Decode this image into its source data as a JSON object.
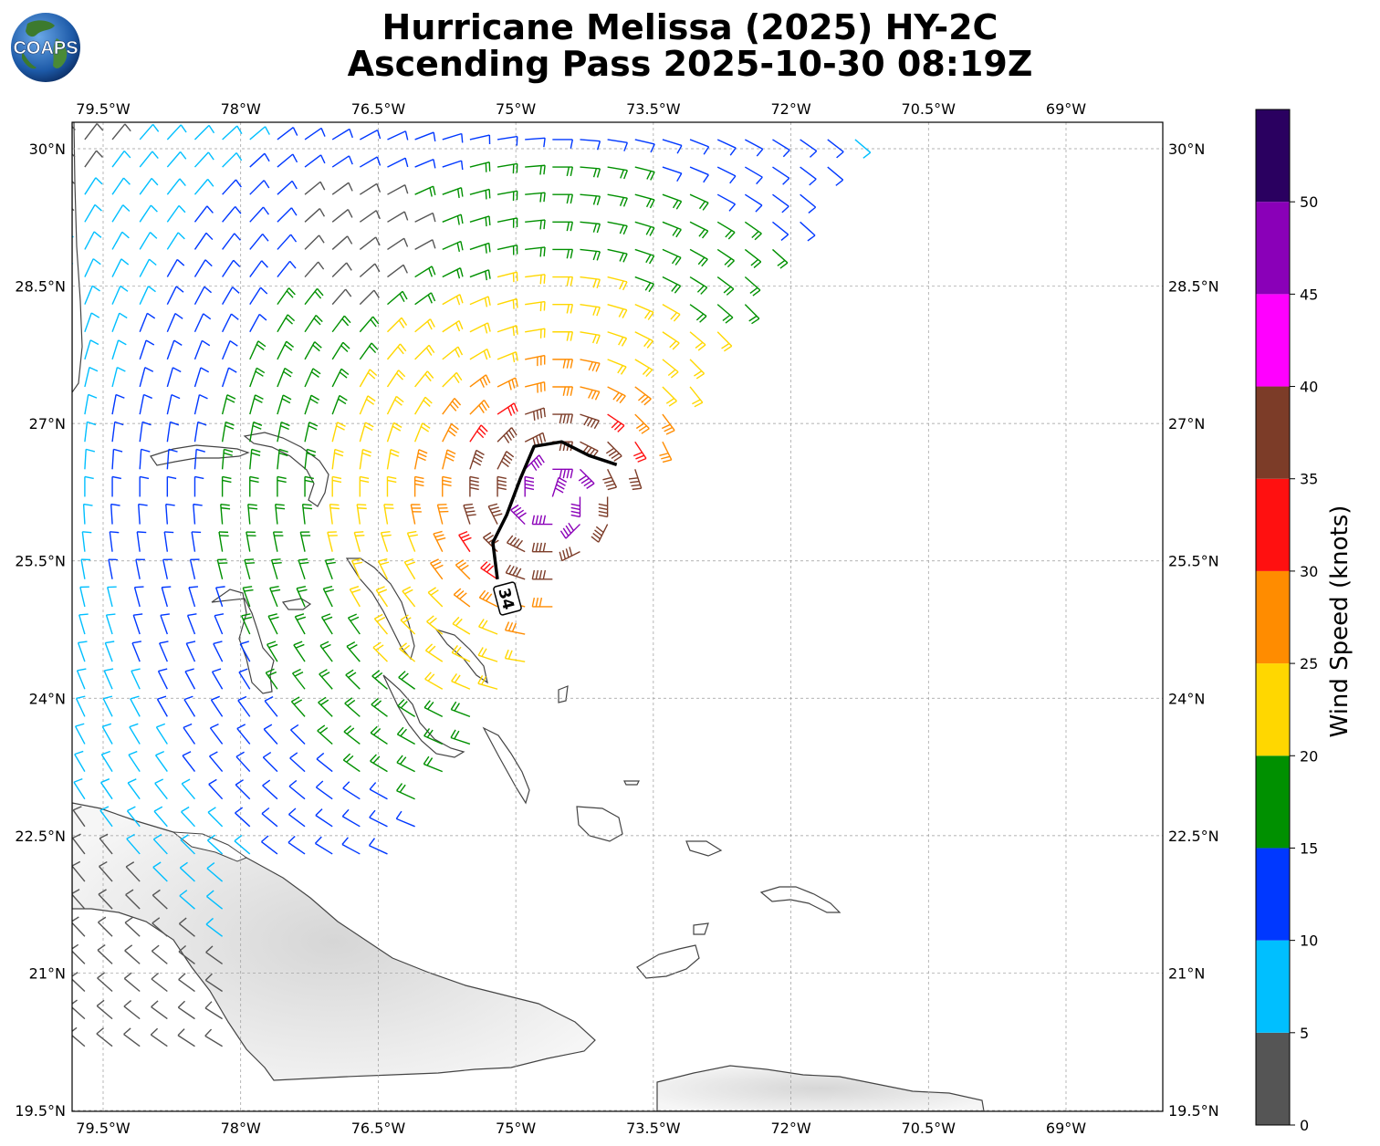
{
  "header": {
    "title_line1": "Hurricane Melissa (2025) HY-2C",
    "title_line2": "Ascending Pass 2025-10-30 08:19Z",
    "logo_text": "COAPS"
  },
  "map": {
    "lon_range": [
      -80,
      -68
    ],
    "lat_range": [
      19.5,
      30.3
    ],
    "lon_ticks": [
      {
        "value": -79.5,
        "label": "79.5°W"
      },
      {
        "value": -78.0,
        "label": "78°W"
      },
      {
        "value": -76.5,
        "label": "76.5°W"
      },
      {
        "value": -75.0,
        "label": "75°W"
      },
      {
        "value": -73.5,
        "label": "73.5°W"
      },
      {
        "value": -72.0,
        "label": "72°W"
      },
      {
        "value": -70.5,
        "label": "70.5°W"
      },
      {
        "value": -69.0,
        "label": "69°W"
      }
    ],
    "lat_ticks": [
      {
        "value": 30.0,
        "label": "30°N"
      },
      {
        "value": 28.5,
        "label": "28.5°N"
      },
      {
        "value": 27.0,
        "label": "27°N"
      },
      {
        "value": 25.5,
        "label": "25.5°N"
      },
      {
        "value": 24.0,
        "label": "24°N"
      },
      {
        "value": 22.5,
        "label": "22.5°N"
      },
      {
        "value": 21.0,
        "label": "21°N"
      },
      {
        "value": 19.5,
        "label": "19.5°N"
      }
    ],
    "gridlines": true,
    "wind_contour": {
      "label": "34",
      "points": [
        [
          -75.2,
          25.3
        ],
        [
          -75.25,
          25.7
        ],
        [
          -75.1,
          26.0
        ],
        [
          -74.95,
          26.4
        ],
        [
          -74.8,
          26.75
        ],
        [
          -74.5,
          26.8
        ],
        [
          -74.2,
          26.65
        ],
        [
          -73.9,
          26.55
        ]
      ]
    },
    "swath_edge": [
      [
        -71.35,
        30.0
      ],
      [
        -73.5,
        27.0
      ],
      [
        -75.0,
        24.9
      ],
      [
        -77.2,
        22.0
      ],
      [
        -78.0,
        19.5
      ]
    ]
  },
  "colorbar": {
    "label": "Wind Speed (knots)",
    "bins": [
      {
        "from": 0,
        "to": 5,
        "color": "#555555"
      },
      {
        "from": 5,
        "to": 10,
        "color": "#00bfff"
      },
      {
        "from": 10,
        "to": 15,
        "color": "#0038ff"
      },
      {
        "from": 15,
        "to": 20,
        "color": "#009000"
      },
      {
        "from": 20,
        "to": 25,
        "color": "#ffd700"
      },
      {
        "from": 25,
        "to": 30,
        "color": "#ff8c00"
      },
      {
        "from": 30,
        "to": 35,
        "color": "#ff1010"
      },
      {
        "from": 35,
        "to": 40,
        "color": "#7c3c28"
      },
      {
        "from": 40,
        "to": 45,
        "color": "#ff00ff"
      },
      {
        "from": 45,
        "to": 50,
        "color": "#8a00b8"
      },
      {
        "from": 50,
        "to": 55,
        "color": "#2a0060"
      }
    ],
    "tick_labels": [
      "0",
      "5",
      "10",
      "15",
      "20",
      "25",
      "30",
      "35",
      "40",
      "45",
      "50"
    ]
  }
}
